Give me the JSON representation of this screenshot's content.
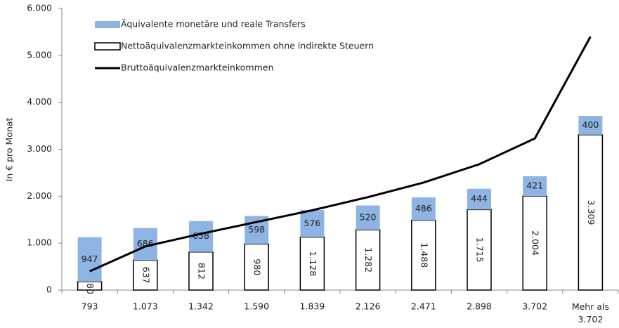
{
  "chart_data": {
    "type": "stacked-bar-line",
    "y_label": "In € pro Monat",
    "categories": [
      "793",
      "1.073",
      "1.342",
      "1.590",
      "1.839",
      "2.126",
      "2.471",
      "2.898",
      "3.702",
      "Mehr als 3.702"
    ],
    "series": [
      {
        "name": "Nettoäquivalenzmarkteinkommen ohne indirekte Steuern",
        "type": "bar",
        "color": "#ffffff",
        "border": "#000000",
        "values": [
          180,
          637,
          812,
          980,
          1128,
          1282,
          1488,
          1715,
          2004,
          3309
        ],
        "value_labels": [
          "180",
          "637",
          "812",
          "980",
          "1.128",
          "1.282",
          "1.488",
          "1.715",
          "2.004",
          "3.309"
        ]
      },
      {
        "name": "Äquivalente monetäre und reale Transfers",
        "type": "bar",
        "color": "#8db4e2",
        "values": [
          947,
          686,
          658,
          598,
          576,
          520,
          486,
          444,
          421,
          400
        ]
      },
      {
        "name": "Bruttoäquivalenzmarkteinkommen",
        "type": "line",
        "color": "#000000",
        "values": [
          400,
          930,
          1200,
          1450,
          1700,
          1980,
          2290,
          2680,
          3230,
          5400
        ]
      }
    ],
    "ylim": [
      0,
      6000
    ],
    "yticks": [
      0,
      {
        "value": 1000,
        "label": "1.000"
      },
      {
        "value": 2000,
        "label": "2.000"
      },
      {
        "value": 3000,
        "label": "3.000"
      },
      {
        "value": 4000,
        "label": "4.000"
      },
      {
        "value": 5000,
        "label": "5.000"
      },
      {
        "value": 6000,
        "label": "6.000"
      }
    ],
    "grid": false
  }
}
